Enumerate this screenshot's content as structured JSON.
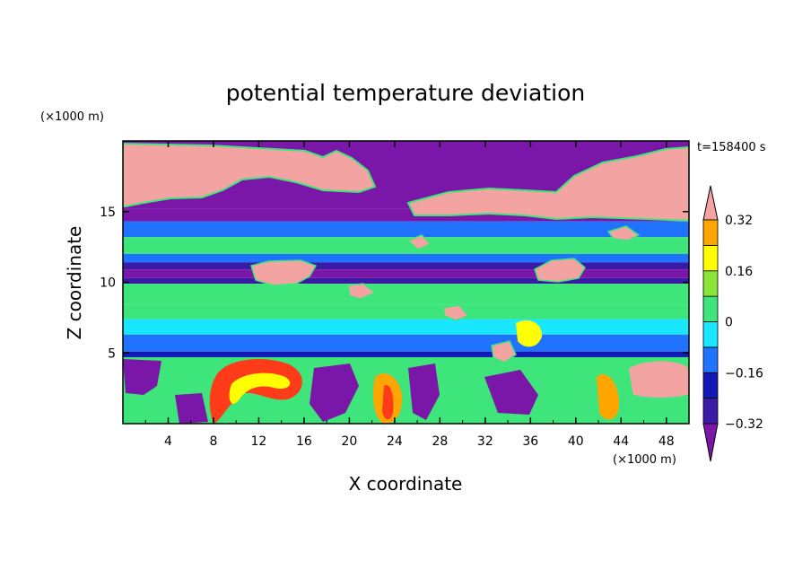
{
  "chart_data": {
    "type": "heatmap",
    "title": "potential temperature deviation",
    "xlabel": "X coordinate",
    "ylabel": "Z coordinate",
    "x_unit": "(×1000 m)",
    "y_unit": "(×1000 m)",
    "time_label": "t=158400 s",
    "xlim": [
      0,
      50
    ],
    "ylim": [
      0,
      20
    ],
    "x_ticks": [
      4,
      8,
      12,
      16,
      20,
      24,
      28,
      32,
      36,
      40,
      44,
      48
    ],
    "y_ticks": [
      5,
      10,
      15
    ],
    "colorbar": {
      "levels": [
        -0.4,
        -0.32,
        -0.24,
        -0.16,
        -0.08,
        0,
        0.08,
        0.16,
        0.24,
        0.32,
        0.4
      ],
      "tick_labels": [
        "0.32",
        "0.16",
        "0",
        "−0.16",
        "−0.32"
      ],
      "tick_values": [
        0.32,
        0.16,
        0,
        -0.16,
        -0.32
      ],
      "colors": [
        "#7a17a8",
        "#3b1aa6",
        "#1219b4",
        "#1f73ff",
        "#19e6ff",
        "#3ee57a",
        "#8ce63a",
        "#ffff00",
        "#ffa500",
        "#ff3b1a",
        "#f4a3a3"
      ]
    },
    "bands": [
      {
        "z": [
          19.3,
          20.0
        ],
        "value": -0.36,
        "comment": "top layer"
      },
      {
        "z": [
          14.3,
          15.2
        ],
        "value": -0.36
      },
      {
        "z": [
          13.2,
          14.3
        ],
        "value": -0.12
      },
      {
        "z": [
          12.0,
          13.2
        ],
        "value": 0.02
      },
      {
        "z": [
          11.4,
          12.0
        ],
        "value": -0.12
      },
      {
        "z": [
          10.9,
          11.4
        ],
        "value": -0.28
      },
      {
        "z": [
          10.3,
          10.9
        ],
        "value": -0.36
      },
      {
        "z": [
          9.9,
          10.3
        ],
        "value": -0.28
      },
      {
        "z": [
          8.4,
          9.9
        ],
        "value": 0.02
      },
      {
        "z": [
          7.4,
          8.4
        ],
        "value": 0.06
      },
      {
        "z": [
          6.3,
          7.4
        ],
        "value": -0.04
      },
      {
        "z": [
          5.1,
          6.3
        ],
        "value": -0.12
      },
      {
        "z": [
          4.7,
          5.1
        ],
        "value": -0.24
      }
    ]
  }
}
